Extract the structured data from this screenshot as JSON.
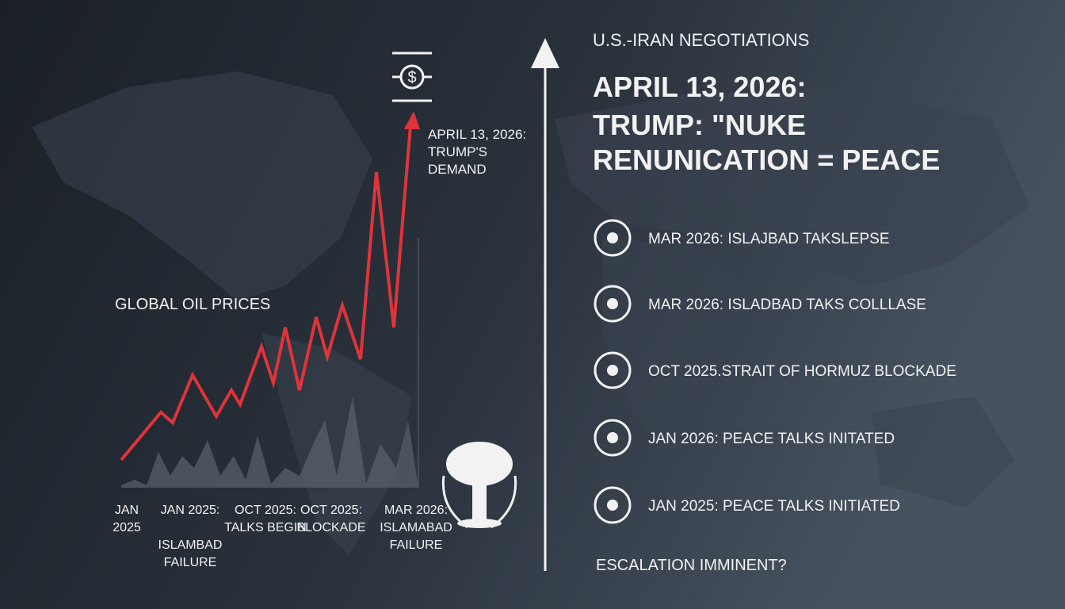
{
  "header": {
    "subtitle": "U.S.-IRAN NEGOTIATIONS",
    "headline": [
      "APRIL 13, 2026:",
      "TRUMP: \"NUKE",
      "RENUNICATION = PEACE"
    ]
  },
  "oil_panel": {
    "title": "GLOBAL OIL PRICES",
    "annotation": [
      "APRIL 13, 2026:",
      "TRUMP'S",
      "DEMAND"
    ],
    "x_labels": [
      [
        "JAN",
        "2025"
      ],
      [
        "JAN 2025:",
        "",
        "ISLAMBAD",
        "FAILURE"
      ],
      [
        "OCT 2025:",
        "TALKS BEGIN"
      ],
      [
        "OCT 2025:",
        "BLOCKADE"
      ],
      [
        "MAR 2026:",
        "ISLAMABAD",
        "FAILURE"
      ]
    ]
  },
  "timeline": {
    "items": [
      "MAR 2026: ISLAJBAD TAKSLEPSE",
      "MAR 2026: ISLADBAD TAKS COLLLASE",
      "OCT 2025.STRAIT OF HORMUZ BLOCKADE",
      "JAN 2026: PEACE TALKS INITATED",
      "JAN 2025: PEACE TALKS INITIATED"
    ],
    "footer": "ESCALATION IMMINENT?"
  }
}
